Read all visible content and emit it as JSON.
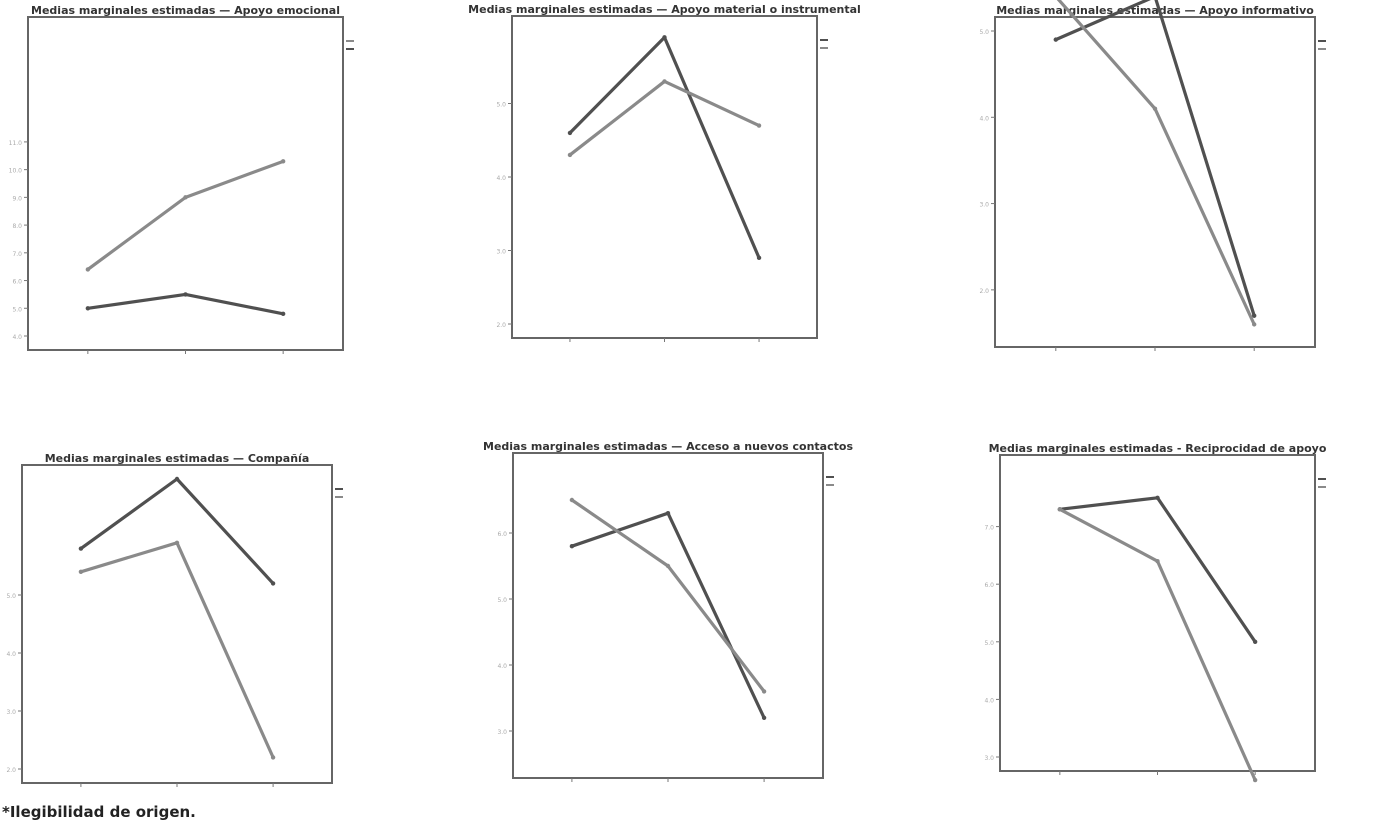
{
  "figure": {
    "footnote": "*Ilegibilidad de origen."
  },
  "chart_data": [
    {
      "type": "line",
      "title": "Medias marginales estimadas — Apoyo emocional",
      "categories": [
        "",
        "",
        ""
      ],
      "ylim": [
        4,
        15
      ],
      "yticks": [
        4,
        5,
        6,
        7,
        8,
        9,
        10,
        11
      ],
      "grid": false,
      "legend": {
        "position": "right",
        "title": "",
        "entries": [
          "",
          ""
        ]
      },
      "series": [
        {
          "name": "",
          "color": "#8a8a8a",
          "values": [
            6.4,
            9.0,
            10.3
          ],
          "labels": [
            "",
            "",
            ""
          ]
        },
        {
          "name": "",
          "color": "#505050",
          "values": [
            5.0,
            5.5,
            4.8
          ],
          "labels": [
            "",
            "",
            ""
          ]
        }
      ]
    },
    {
      "type": "line",
      "title": "Medias marginales estimadas — Apoyo material o instrumental",
      "categories": [
        "",
        "",
        ""
      ],
      "ylim": [
        2.0,
        6.0
      ],
      "yticks": [
        2.0,
        3.0,
        4.0,
        5.0
      ],
      "grid": false,
      "legend": {
        "position": "right",
        "title": "",
        "entries": [
          "",
          ""
        ]
      },
      "series": [
        {
          "name": "",
          "color": "#505050",
          "values": [
            4.6,
            5.9,
            2.9
          ],
          "labels": [
            "",
            "",
            ""
          ]
        },
        {
          "name": "",
          "color": "#8a8a8a",
          "values": [
            4.3,
            5.3,
            4.7
          ],
          "labels": [
            "",
            "",
            ""
          ]
        }
      ]
    },
    {
      "type": "line",
      "title": "Medias marginales estimadas — Apoyo informativo",
      "categories": [
        "",
        "",
        ""
      ],
      "ylim": [
        1.5,
        5.0
      ],
      "yticks": [
        2.0,
        3.0,
        4.0,
        5.0
      ],
      "grid": false,
      "legend": {
        "position": "right",
        "title": "",
        "entries": [
          "",
          ""
        ]
      },
      "series": [
        {
          "name": "",
          "color": "#505050",
          "values": [
            4.9,
            5.4,
            1.7
          ],
          "labels": [
            "",
            "",
            ""
          ]
        },
        {
          "name": "",
          "color": "#8a8a8a",
          "values": [
            5.4,
            4.1,
            1.6
          ],
          "labels": [
            "",
            "",
            ""
          ]
        }
      ]
    },
    {
      "type": "line",
      "title": "Medias marginales estimadas — Compañía",
      "categories": [
        "",
        "",
        ""
      ],
      "ylim": [
        2.0,
        7.0
      ],
      "yticks": [
        2.0,
        3.0,
        4.0,
        5.0
      ],
      "grid": false,
      "legend": {
        "position": "right",
        "title": "",
        "entries": [
          "",
          ""
        ]
      },
      "series": [
        {
          "name": "",
          "color": "#505050",
          "values": [
            5.8,
            7.0,
            5.2
          ],
          "labels": [
            "",
            "",
            ""
          ]
        },
        {
          "name": "",
          "color": "#8a8a8a",
          "values": [
            5.4,
            5.9,
            2.2
          ],
          "labels": [
            "",
            "",
            ""
          ]
        }
      ]
    },
    {
      "type": "line",
      "title": "Medias marginales estimadas — Acceso a nuevos contactos",
      "categories": [
        "",
        "",
        ""
      ],
      "ylim": [
        2.5,
        7.0
      ],
      "yticks": [
        3.0,
        4.0,
        5.0,
        6.0
      ],
      "grid": false,
      "legend": {
        "position": "right",
        "title": "",
        "entries": [
          "",
          ""
        ]
      },
      "series": [
        {
          "name": "",
          "color": "#505050",
          "values": [
            5.8,
            6.3,
            3.2
          ],
          "labels": [
            "",
            "",
            ""
          ]
        },
        {
          "name": "",
          "color": "#8a8a8a",
          "values": [
            6.5,
            5.5,
            3.6
          ],
          "labels": [
            "",
            "",
            ""
          ]
        }
      ]
    },
    {
      "type": "line",
      "title": "Medias marginales estimadas - Reciprocidad de apoyo",
      "categories": [
        "",
        "",
        ""
      ],
      "ylim": [
        3.0,
        8.0
      ],
      "yticks": [
        3.0,
        4.0,
        5.0,
        6.0,
        7.0
      ],
      "grid": false,
      "legend": {
        "position": "right",
        "title": "",
        "entries": [
          "",
          ""
        ]
      },
      "series": [
        {
          "name": "",
          "color": "#505050",
          "values": [
            7.3,
            7.5,
            5.0
          ],
          "labels": [
            "",
            "",
            ""
          ]
        },
        {
          "name": "",
          "color": "#8a8a8a",
          "values": [
            7.3,
            6.4,
            2.6
          ],
          "labels": [
            "",
            "",
            ""
          ]
        }
      ]
    }
  ]
}
